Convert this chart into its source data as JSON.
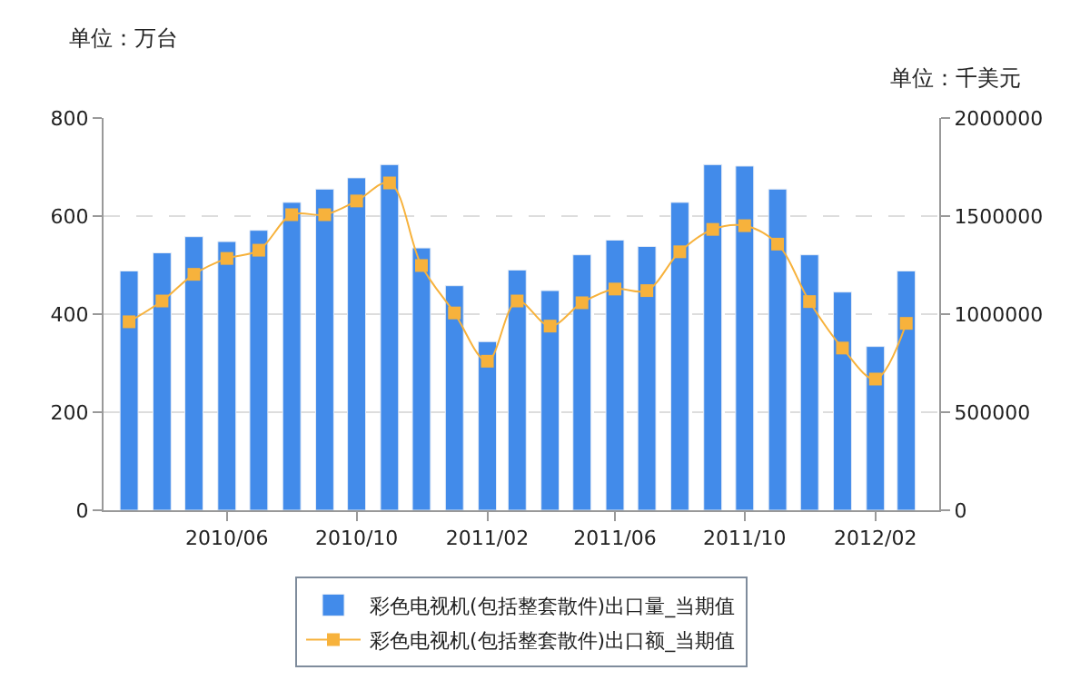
{
  "chart_data": {
    "type": "bar",
    "x": [
      "2010-03",
      "2010-04",
      "2010-05",
      "2010-06",
      "2010-07",
      "2010-08",
      "2010-09",
      "2010-10",
      "2010-11",
      "2010-12",
      "2011-01",
      "2011-02",
      "2011-03",
      "2011-04",
      "2011-05",
      "2011-06",
      "2011-07",
      "2011-08",
      "2011-09",
      "2011-10",
      "2011-11",
      "2011-12",
      "2012-01",
      "2012-02",
      "2012-03"
    ],
    "series": [
      {
        "name": "彩色电视机(包括整套散件)出口量_当期值",
        "color": "#428bea",
        "values": [
          488,
          525,
          558,
          548,
          571,
          628,
          655,
          678,
          705,
          535,
          458,
          344,
          490,
          448,
          521,
          551,
          538,
          628,
          705,
          702,
          655,
          521,
          445,
          334,
          488
        ]
      },
      {
        "name": "彩色电视机(包括整套散件)出口额_当期值",
        "type": "line",
        "axis": "y2",
        "color": "#f7b23c",
        "marker": "square",
        "values": [
          961000,
          1067000,
          1203000,
          1284000,
          1326000,
          1507000,
          1507000,
          1577000,
          1669000,
          1248000,
          1006000,
          760000,
          1067000,
          939000,
          1058000,
          1128000,
          1120000,
          1318000,
          1432000,
          1451000,
          1357000,
          1064000,
          827000,
          669000,
          953000
        ]
      }
    ],
    "annotations": [
      "单位：万台",
      "单位：千美元"
    ],
    "xlim": [
      "2010-02-05",
      "2012-04-01"
    ],
    "xticks": [
      {
        "value": "2010-06",
        "label": "2010/06"
      },
      {
        "value": "2010-10",
        "label": "2010/10"
      },
      {
        "value": "2011-02",
        "label": "2011/02"
      },
      {
        "value": "2011-06",
        "label": "2011/06"
      },
      {
        "value": "2011-10",
        "label": "2011/10"
      },
      {
        "value": "2012-02",
        "label": "2012/02"
      }
    ],
    "ylim": [
      0,
      800
    ],
    "yticks": [
      0,
      200,
      400,
      600,
      800
    ],
    "y2lim": [
      0,
      2000000
    ],
    "y2ticks": [
      0,
      500000,
      1000000,
      1500000,
      2000000
    ],
    "grid": "y",
    "legend": "bottom"
  }
}
